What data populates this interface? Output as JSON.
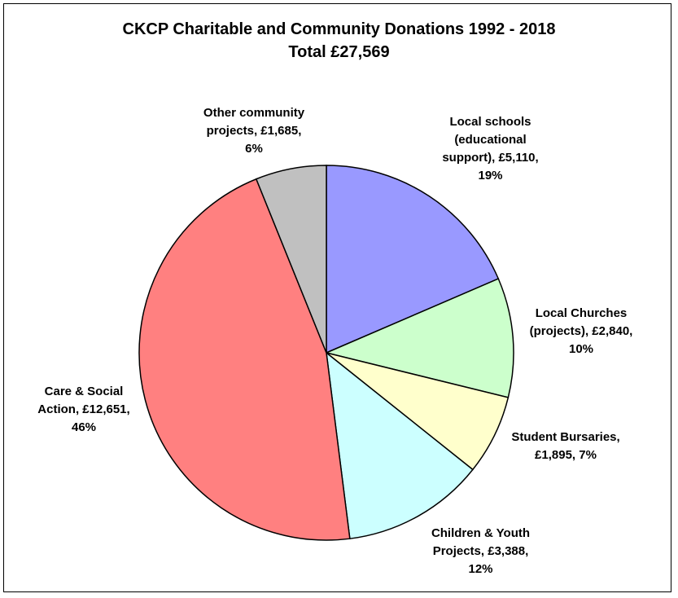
{
  "chart_data": {
    "type": "pie",
    "title": "CKCP Charitable and Community Donations 1992 - 2018",
    "subtitle": "Total £27,569",
    "slices": [
      {
        "label_lines": [
          "Local schools",
          "(educational",
          "support), £5,110,",
          "19%"
        ],
        "value": 5110,
        "percent": 19,
        "color": "#9999ff"
      },
      {
        "label_lines": [
          "Local Churches",
          "(projects), £2,840,",
          "10%"
        ],
        "value": 2840,
        "percent": 10,
        "color": "#ccffcc"
      },
      {
        "label_lines": [
          "Student Bursaries,",
          "£1,895, 7%"
        ],
        "value": 1895,
        "percent": 7,
        "color": "#ffffcc"
      },
      {
        "label_lines": [
          "Children & Youth",
          "Projects, £3,388,",
          "12%"
        ],
        "value": 3388,
        "percent": 12,
        "color": "#ccffff"
      },
      {
        "label_lines": [
          "Care & Social",
          "Action, £12,651,",
          "46%"
        ],
        "value": 12651,
        "percent": 46,
        "color": "#ff8080"
      },
      {
        "label_lines": [
          "Other community",
          "projects, £1,685,",
          "6%"
        ],
        "value": 1685,
        "percent": 6,
        "color": "#c0c0c0"
      }
    ]
  }
}
